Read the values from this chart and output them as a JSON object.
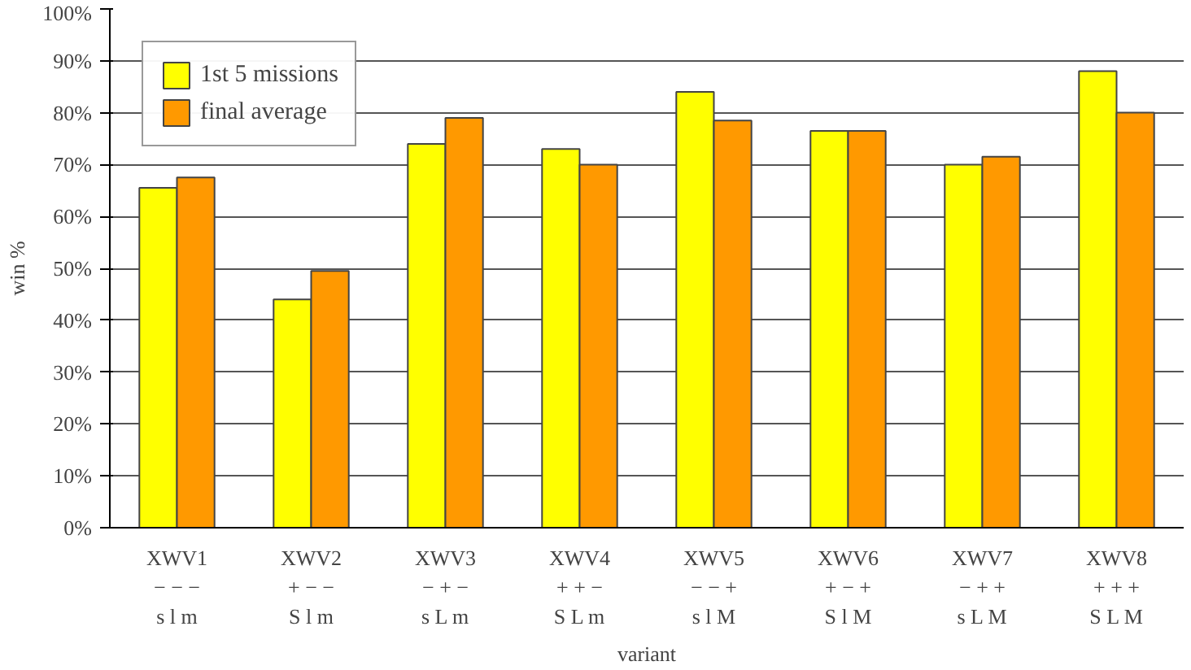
{
  "chart_data": {
    "type": "bar",
    "xlabel": "variant",
    "ylabel": "win %",
    "categories": [
      "XWV1\n− − −\ns l m",
      "XWV2\n+ − −\nS l m",
      "XWV3\n− + −\ns L m",
      "XWV4\n+ + −\nS L m",
      "XWV5\n− − +\ns l M",
      "XWV6\n+ − +\nS l M",
      "XWV7\n− + +\ns L M",
      "XWV8\n+ + +\nS L M"
    ],
    "series": [
      {
        "name": "1st 5 missions",
        "color": "#ffff00",
        "values": [
          65.5,
          44,
          74,
          73,
          84,
          76.5,
          70,
          88
        ]
      },
      {
        "name": "final average",
        "color": "#ff9900",
        "values": [
          67.5,
          49.5,
          79,
          70,
          78.5,
          76.5,
          71.5,
          80
        ]
      }
    ],
    "ylim": [
      0,
      100
    ],
    "yticks": [
      {
        "value": 0,
        "label": "0%"
      },
      {
        "value": 10,
        "label": "10%"
      },
      {
        "value": 20,
        "label": "20%"
      },
      {
        "value": 30,
        "label": "30%"
      },
      {
        "value": 40,
        "label": "40%"
      },
      {
        "value": 50,
        "label": "50%"
      },
      {
        "value": 60,
        "label": "60%"
      },
      {
        "value": 70,
        "label": "70%"
      },
      {
        "value": 80,
        "label": "80%"
      },
      {
        "value": 90,
        "label": "90%"
      },
      {
        "value": 100,
        "label": "100%"
      }
    ],
    "grid": "y",
    "legend": "top left"
  }
}
